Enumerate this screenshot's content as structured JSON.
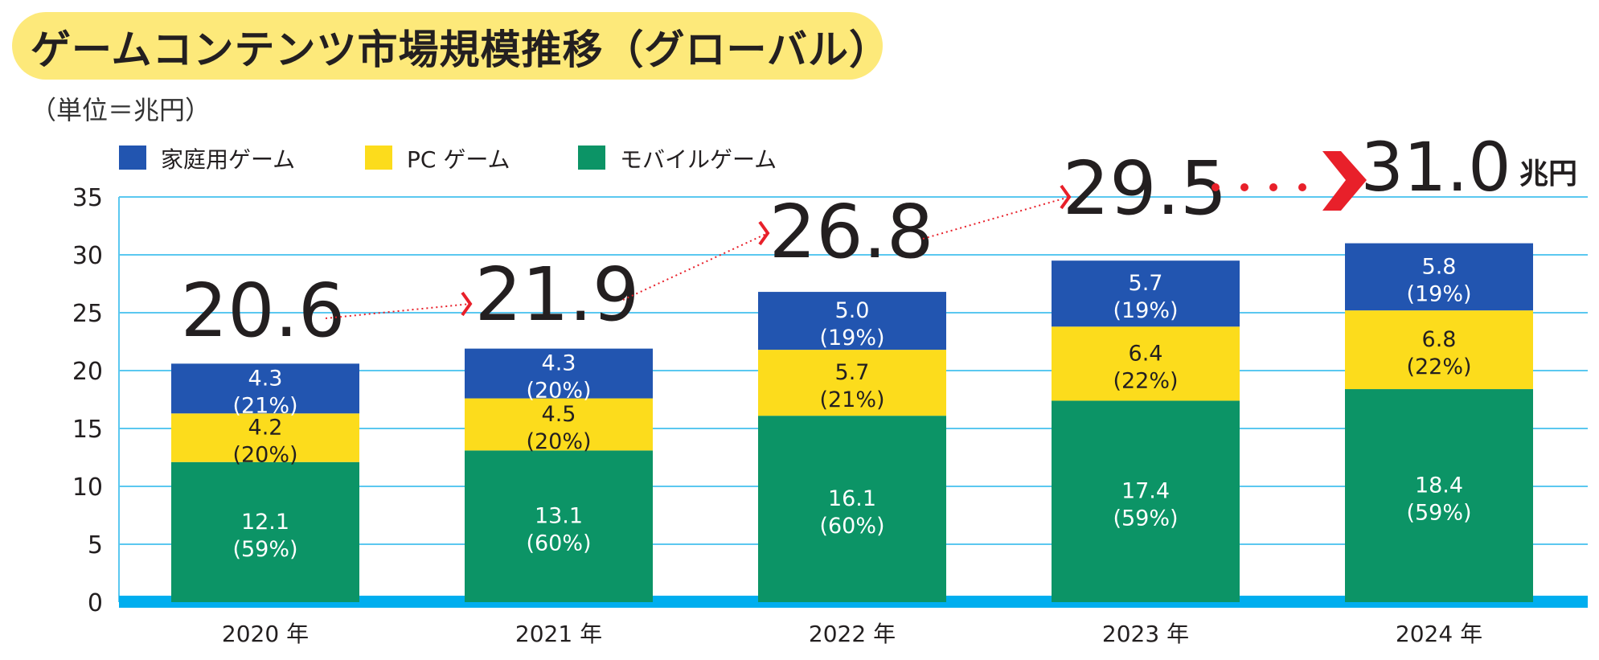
{
  "chart_data": {
    "type": "bar",
    "stacked": true,
    "title": "ゲームコンテンツ市場規模推移（グローバル）",
    "unit_label": "（単位＝兆円）",
    "categories": [
      "2020 年",
      "2021 年",
      "2022 年",
      "2023 年",
      "2024 年"
    ],
    "series": [
      {
        "name": "モバイルゲーム",
        "color": "#0c9466",
        "values": [
          12.1,
          13.1,
          16.1,
          17.4,
          18.4
        ],
        "labels": [
          "(59%)",
          "(60%)",
          "(60%)",
          "(59%)",
          "(59%)"
        ]
      },
      {
        "name": "PC ゲーム",
        "color": "#fcdc1c",
        "values": [
          4.2,
          4.5,
          5.7,
          6.4,
          6.8
        ],
        "labels": [
          "(20%)",
          "(20%)",
          "(21%)",
          "(22%)",
          "(22%)"
        ]
      },
      {
        "name": "家庭用ゲーム",
        "color": "#2255b0",
        "values": [
          4.3,
          4.3,
          5.0,
          5.7,
          5.8
        ],
        "labels": [
          "(21%)",
          "(20%)",
          "(19%)",
          "(19%)",
          "(19%)"
        ]
      }
    ],
    "legend_order": [
      "家庭用ゲーム",
      "PC ゲーム",
      "モバイルゲーム"
    ],
    "totals": [
      "20.6",
      "21.9",
      "26.8",
      "29.5",
      "31.0"
    ],
    "total_unit": "兆円",
    "ylim": [
      0,
      35
    ],
    "yticks": [
      0,
      5,
      10,
      15,
      20,
      25,
      30,
      35
    ],
    "grid": true,
    "legend_position": "top-left",
    "colors": {
      "grid": "#5bc8f0",
      "baseline": "#00aeef",
      "arrow": "#e8202a",
      "title_bg": "#fde97a"
    }
  }
}
